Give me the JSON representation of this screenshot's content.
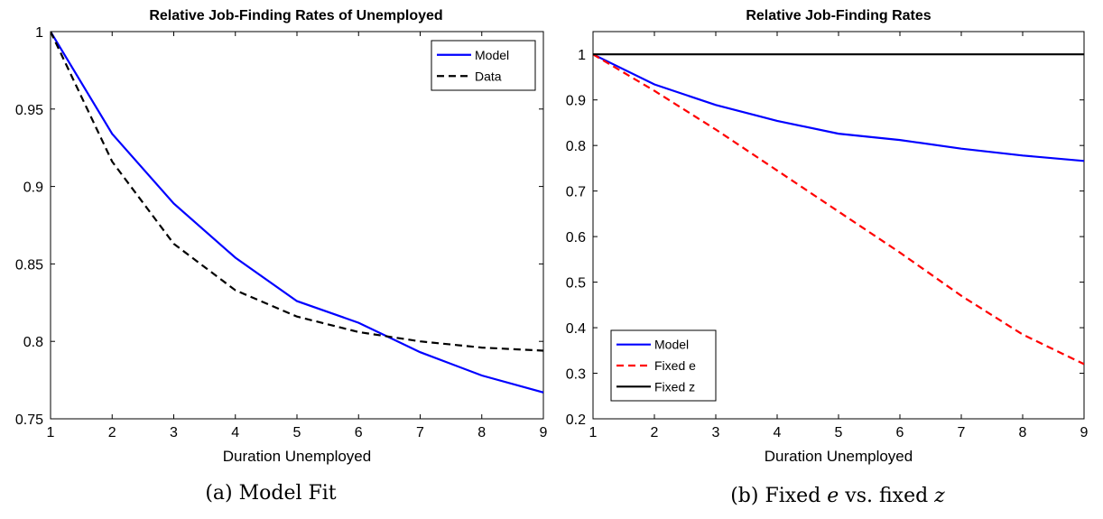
{
  "chart_data": [
    {
      "type": "line",
      "title": "Relative Job-Finding Rates of Unemployed",
      "xlabel": "Duration Unemployed",
      "ylabel": "",
      "xlim": [
        1,
        9
      ],
      "ylim": [
        0.75,
        1
      ],
      "xticks": [
        "1",
        "2",
        "3",
        "4",
        "5",
        "6",
        "7",
        "8",
        "9"
      ],
      "yticks": [
        "0.75",
        "0.8",
        "0.85",
        "0.9",
        "0.95",
        "1"
      ],
      "legend": "top-right",
      "x": [
        1,
        2,
        3,
        4,
        5,
        6,
        7,
        8,
        9
      ],
      "series": [
        {
          "name": "Model",
          "color": "#0000ff",
          "style": "solid",
          "values": [
            1.0,
            0.934,
            0.889,
            0.854,
            0.826,
            0.812,
            0.793,
            0.778,
            0.767
          ]
        },
        {
          "name": "Data",
          "color": "#000000",
          "style": "dashed",
          "values": [
            1.0,
            0.916,
            0.863,
            0.833,
            0.816,
            0.806,
            0.8,
            0.796,
            0.794
          ]
        }
      ],
      "caption": {
        "label": "(a) Model Fit"
      }
    },
    {
      "type": "line",
      "title": "Relative Job-Finding Rates",
      "xlabel": "Duration Unemployed",
      "ylabel": "",
      "xlim": [
        1,
        9
      ],
      "ylim": [
        0.2,
        1.05
      ],
      "xticks": [
        "1",
        "2",
        "3",
        "4",
        "5",
        "6",
        "7",
        "8",
        "9"
      ],
      "yticks": [
        "0.2",
        "0.3",
        "0.4",
        "0.5",
        "0.6",
        "0.7",
        "0.8",
        "0.9",
        "1"
      ],
      "legend": "bottom-left",
      "x": [
        1,
        2,
        3,
        4,
        5,
        6,
        7,
        8,
        9
      ],
      "series": [
        {
          "name": "Model",
          "color": "#0000ff",
          "style": "solid",
          "values": [
            1.0,
            0.934,
            0.889,
            0.854,
            0.826,
            0.812,
            0.793,
            0.778,
            0.766
          ]
        },
        {
          "name": "Fixed e",
          "color": "#ff0000",
          "style": "dashed",
          "values": [
            1.0,
            0.92,
            0.835,
            0.745,
            0.655,
            0.565,
            0.47,
            0.385,
            0.32
          ]
        },
        {
          "name": "Fixed z",
          "color": "#000000",
          "style": "solid",
          "values": [
            1.0,
            1.0,
            1.0,
            1.0,
            1.0,
            1.0,
            1.0,
            1.0,
            1.0
          ]
        }
      ],
      "caption": {
        "prefix": "(b) Fixed ",
        "var1": "e",
        "mid": " vs. fixed ",
        "var2": "z"
      }
    }
  ]
}
